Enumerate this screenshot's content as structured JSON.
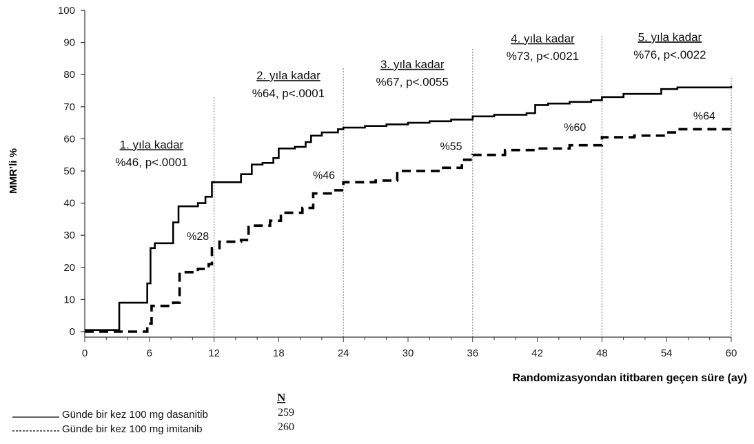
{
  "chart_data": {
    "type": "line",
    "xlabel": "Randomizasyondan ititbaren geçen süre (ay)",
    "ylabel": "MMR’li %",
    "xlim": [
      0,
      60
    ],
    "ylim": [
      0,
      100
    ],
    "xticks": [
      0,
      6,
      12,
      18,
      24,
      30,
      36,
      42,
      48,
      54,
      60
    ],
    "yticks": [
      0,
      10,
      20,
      30,
      40,
      50,
      60,
      70,
      80,
      90,
      100
    ],
    "vlines": [
      12,
      24,
      36,
      48,
      60
    ],
    "grid": false,
    "series": [
      {
        "name": "Günde bir kez 100 mg dasanitib",
        "n": "259",
        "style": "solid",
        "color": "#000000",
        "points": [
          [
            0,
            0.5
          ],
          [
            2.8,
            0.5
          ],
          [
            3.2,
            9
          ],
          [
            5.5,
            9
          ],
          [
            5.8,
            15
          ],
          [
            6.1,
            26
          ],
          [
            6.5,
            27.5
          ],
          [
            7.8,
            27.5
          ],
          [
            8.2,
            34
          ],
          [
            8.7,
            39
          ],
          [
            10.5,
            40
          ],
          [
            11.2,
            42
          ],
          [
            11.8,
            46.5
          ],
          [
            13.5,
            46.5
          ],
          [
            14.5,
            49
          ],
          [
            15.5,
            52
          ],
          [
            16.5,
            52.5
          ],
          [
            17.5,
            54
          ],
          [
            18,
            57
          ],
          [
            19.5,
            57.5
          ],
          [
            20.5,
            59
          ],
          [
            21,
            61
          ],
          [
            22,
            62
          ],
          [
            23.5,
            63
          ],
          [
            24,
            63.5
          ],
          [
            26,
            64
          ],
          [
            28,
            64.5
          ],
          [
            30,
            65
          ],
          [
            32,
            65.5
          ],
          [
            34,
            66
          ],
          [
            36,
            67
          ],
          [
            38,
            67.5
          ],
          [
            40,
            67.5
          ],
          [
            41,
            68
          ],
          [
            41.8,
            70.5
          ],
          [
            43,
            71
          ],
          [
            45,
            71.5
          ],
          [
            47,
            72
          ],
          [
            48,
            73
          ],
          [
            50,
            74
          ],
          [
            52,
            74
          ],
          [
            53.5,
            75.5
          ],
          [
            55,
            76
          ],
          [
            60,
            76.5
          ]
        ]
      },
      {
        "name": "Günde bir kez 100 mg imitanib",
        "n": "260",
        "style": "dashed",
        "color": "#000000",
        "points": [
          [
            0,
            0
          ],
          [
            5,
            0
          ],
          [
            5.8,
            2.5
          ],
          [
            6.2,
            8
          ],
          [
            8.2,
            9
          ],
          [
            8.8,
            18.5
          ],
          [
            10.5,
            19.5
          ],
          [
            11.5,
            21
          ],
          [
            11.8,
            26
          ],
          [
            12.5,
            28
          ],
          [
            14.5,
            28.5
          ],
          [
            15.2,
            33
          ],
          [
            17.2,
            34.5
          ],
          [
            18.2,
            37
          ],
          [
            20.2,
            38.5
          ],
          [
            21.2,
            43
          ],
          [
            23,
            44
          ],
          [
            24,
            46.5
          ],
          [
            27,
            47
          ],
          [
            29,
            50
          ],
          [
            33,
            51
          ],
          [
            35,
            53.5
          ],
          [
            36,
            55
          ],
          [
            39,
            56.5
          ],
          [
            42,
            57
          ],
          [
            45,
            58
          ],
          [
            48,
            60.5
          ],
          [
            51,
            61
          ],
          [
            54,
            62
          ],
          [
            55,
            63
          ],
          [
            60,
            64
          ]
        ]
      }
    ],
    "annotations": [
      {
        "head": "1. yıla kadar",
        "sub": "%46, p<.0001",
        "x": 6.2,
        "y1": 57,
        "y2": 51.5
      },
      {
        "head": "2. yıla kadar",
        "sub": "%64, p<.0001",
        "x": 18.9,
        "y1": 78.5,
        "y2": 73
      },
      {
        "head": "3. yıla kadar",
        "sub": "%67, p<.0055",
        "x": 30.4,
        "y1": 82,
        "y2": 76.5
      },
      {
        "head": "4. yıla kadar",
        "sub": "%73, p<.0021",
        "x": 42.5,
        "y1": 90,
        "y2": 84.5
      },
      {
        "head": "5. yıla kadar",
        "sub": "%76, p<.0022",
        "x": 54.3,
        "y1": 90.5,
        "y2": 85
      }
    ],
    "point_labels": [
      {
        "text": "%28",
        "x": 10.5,
        "y": 28.5
      },
      {
        "text": "%46",
        "x": 22.2,
        "y": 47.5
      },
      {
        "text": "%55",
        "x": 34.0,
        "y": 56.5
      },
      {
        "text": "%60",
        "x": 45.5,
        "y": 62.5
      },
      {
        "text": "%64",
        "x": 57.5,
        "y": 66
      }
    ],
    "legend": {
      "n_header": "N"
    }
  }
}
